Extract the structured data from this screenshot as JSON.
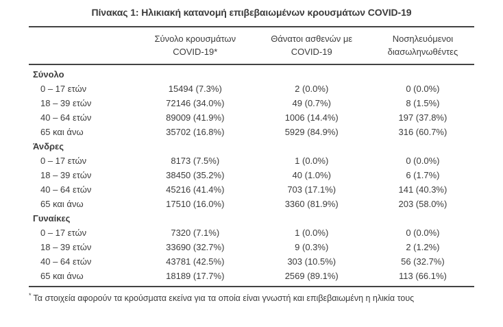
{
  "title": "Πίνακας 1: Ηλικιακή κατανομή επιβεβαιωμένων κρουσμάτων COVID-19",
  "colors": {
    "text": "#3b3b3b",
    "rule": "#424242",
    "background": "#ffffff"
  },
  "table": {
    "columns": {
      "col1": {
        "line1": "",
        "line2": ""
      },
      "col2": {
        "line1": "Σύνολο κρουσμάτων",
        "line2": "COVID-19*"
      },
      "col3": {
        "line1": "Θάνατοι ασθενών με",
        "line2": "COVID-19"
      },
      "col4": {
        "line1": "Νοσηλευόμενοι",
        "line2": "διασωληνωθέντες"
      }
    },
    "sections": [
      {
        "label": "Σύνολο",
        "rows": [
          {
            "age": "0 – 17 ετών",
            "cases": "15494 (7.3%)",
            "deaths": "2 (0.0%)",
            "intubated": "0 (0.0%)"
          },
          {
            "age": "18 – 39 ετών",
            "cases": "72146 (34.0%)",
            "deaths": "49 (0.7%)",
            "intubated": "8 (1.5%)"
          },
          {
            "age": "40 – 64 ετών",
            "cases": "89009 (41.9%)",
            "deaths": "1006 (14.4%)",
            "intubated": "197 (37.8%)"
          },
          {
            "age": "65 και άνω",
            "cases": "35702 (16.8%)",
            "deaths": "5929 (84.9%)",
            "intubated": "316 (60.7%)"
          }
        ]
      },
      {
        "label": "Άνδρες",
        "rows": [
          {
            "age": "0 – 17 ετών",
            "cases": "8173 (7.5%)",
            "deaths": "1 (0.0%)",
            "intubated": "0 (0.0%)"
          },
          {
            "age": "18 – 39 ετών",
            "cases": "38450 (35.2%)",
            "deaths": "40 (1.0%)",
            "intubated": "6 (1.7%)"
          },
          {
            "age": "40 – 64 ετών",
            "cases": "45216 (41.4%)",
            "deaths": "703 (17.1%)",
            "intubated": "141 (40.3%)"
          },
          {
            "age": "65 και άνω",
            "cases": "17510 (16.0%)",
            "deaths": "3360 (81.9%)",
            "intubated": "203 (58.0%)"
          }
        ]
      },
      {
        "label": "Γυναίκες",
        "rows": [
          {
            "age": "0 – 17 ετών",
            "cases": "7320 (7.1%)",
            "deaths": "1 (0.0%)",
            "intubated": "0 (0.0%)"
          },
          {
            "age": "18 – 39 ετών",
            "cases": "33690 (32.7%)",
            "deaths": "9 (0.3%)",
            "intubated": "2 (1.2%)"
          },
          {
            "age": "40 – 64 ετών",
            "cases": "43781 (42.5%)",
            "deaths": "303 (10.5%)",
            "intubated": "56 (32.7%)"
          },
          {
            "age": "65 και άνω",
            "cases": "18189 (17.7%)",
            "deaths": "2569 (89.1%)",
            "intubated": "113 (66.1%)"
          }
        ]
      }
    ]
  },
  "footnote": {
    "marker": "*",
    "text": "Τα στοιχεία αφορούν τα κρούσματα εκείνα για τα οποία είναι γνωστή και επιβεβαιωμένη η ηλικία τους"
  }
}
